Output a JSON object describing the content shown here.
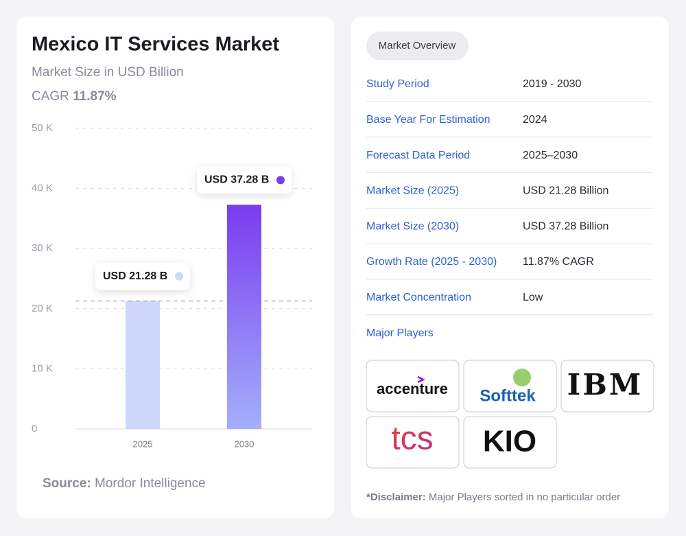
{
  "chart_data": {
    "type": "bar",
    "title": "Mexico IT Services Market",
    "subtitle": "Market Size in USD Billion",
    "cagr_label": "CAGR",
    "cagr_value": "11.87%",
    "categories": [
      "2025",
      "2030"
    ],
    "values": [
      21.28,
      37.28
    ],
    "value_labels": [
      "USD 21.28 B",
      "USD 37.28 B"
    ],
    "colors": [
      "#cdd6fb",
      "#7a3cf0"
    ],
    "ylim": [
      0,
      50
    ],
    "yticks": [
      0,
      {
        "value": 10,
        "label": "10 K"
      },
      {
        "value": 20,
        "label": "20 K"
      },
      {
        "value": 30,
        "label": "30 K"
      },
      {
        "value": 40,
        "label": "40 K"
      },
      {
        "value": 50,
        "label": "50 K"
      }
    ],
    "grid": true,
    "source_label": "Source:",
    "source": "Mordor Intelligence"
  },
  "overview": {
    "tab": "Market Overview",
    "rows": [
      [
        "Study Period",
        "2019 - 2030"
      ],
      [
        "Base Year For Estimation",
        "2024"
      ],
      [
        "Forecast Data Period",
        "2025–2030"
      ],
      [
        "Market Size (2025)",
        "USD 21.28 Billion"
      ],
      [
        "Market Size (2030)",
        "USD 37.28 Billion"
      ],
      [
        "Growth Rate (2025 - 2030)",
        "11.87% CAGR"
      ],
      [
        "Market Concentration",
        "Low"
      ]
    ],
    "major_players_label": "Major Players",
    "players": [
      "accenture",
      "Softtek",
      "IBM",
      "tcs",
      "KIO"
    ],
    "disclaimer_label": "*Disclaimer:",
    "disclaimer": "Major Players sorted in no particular order"
  }
}
